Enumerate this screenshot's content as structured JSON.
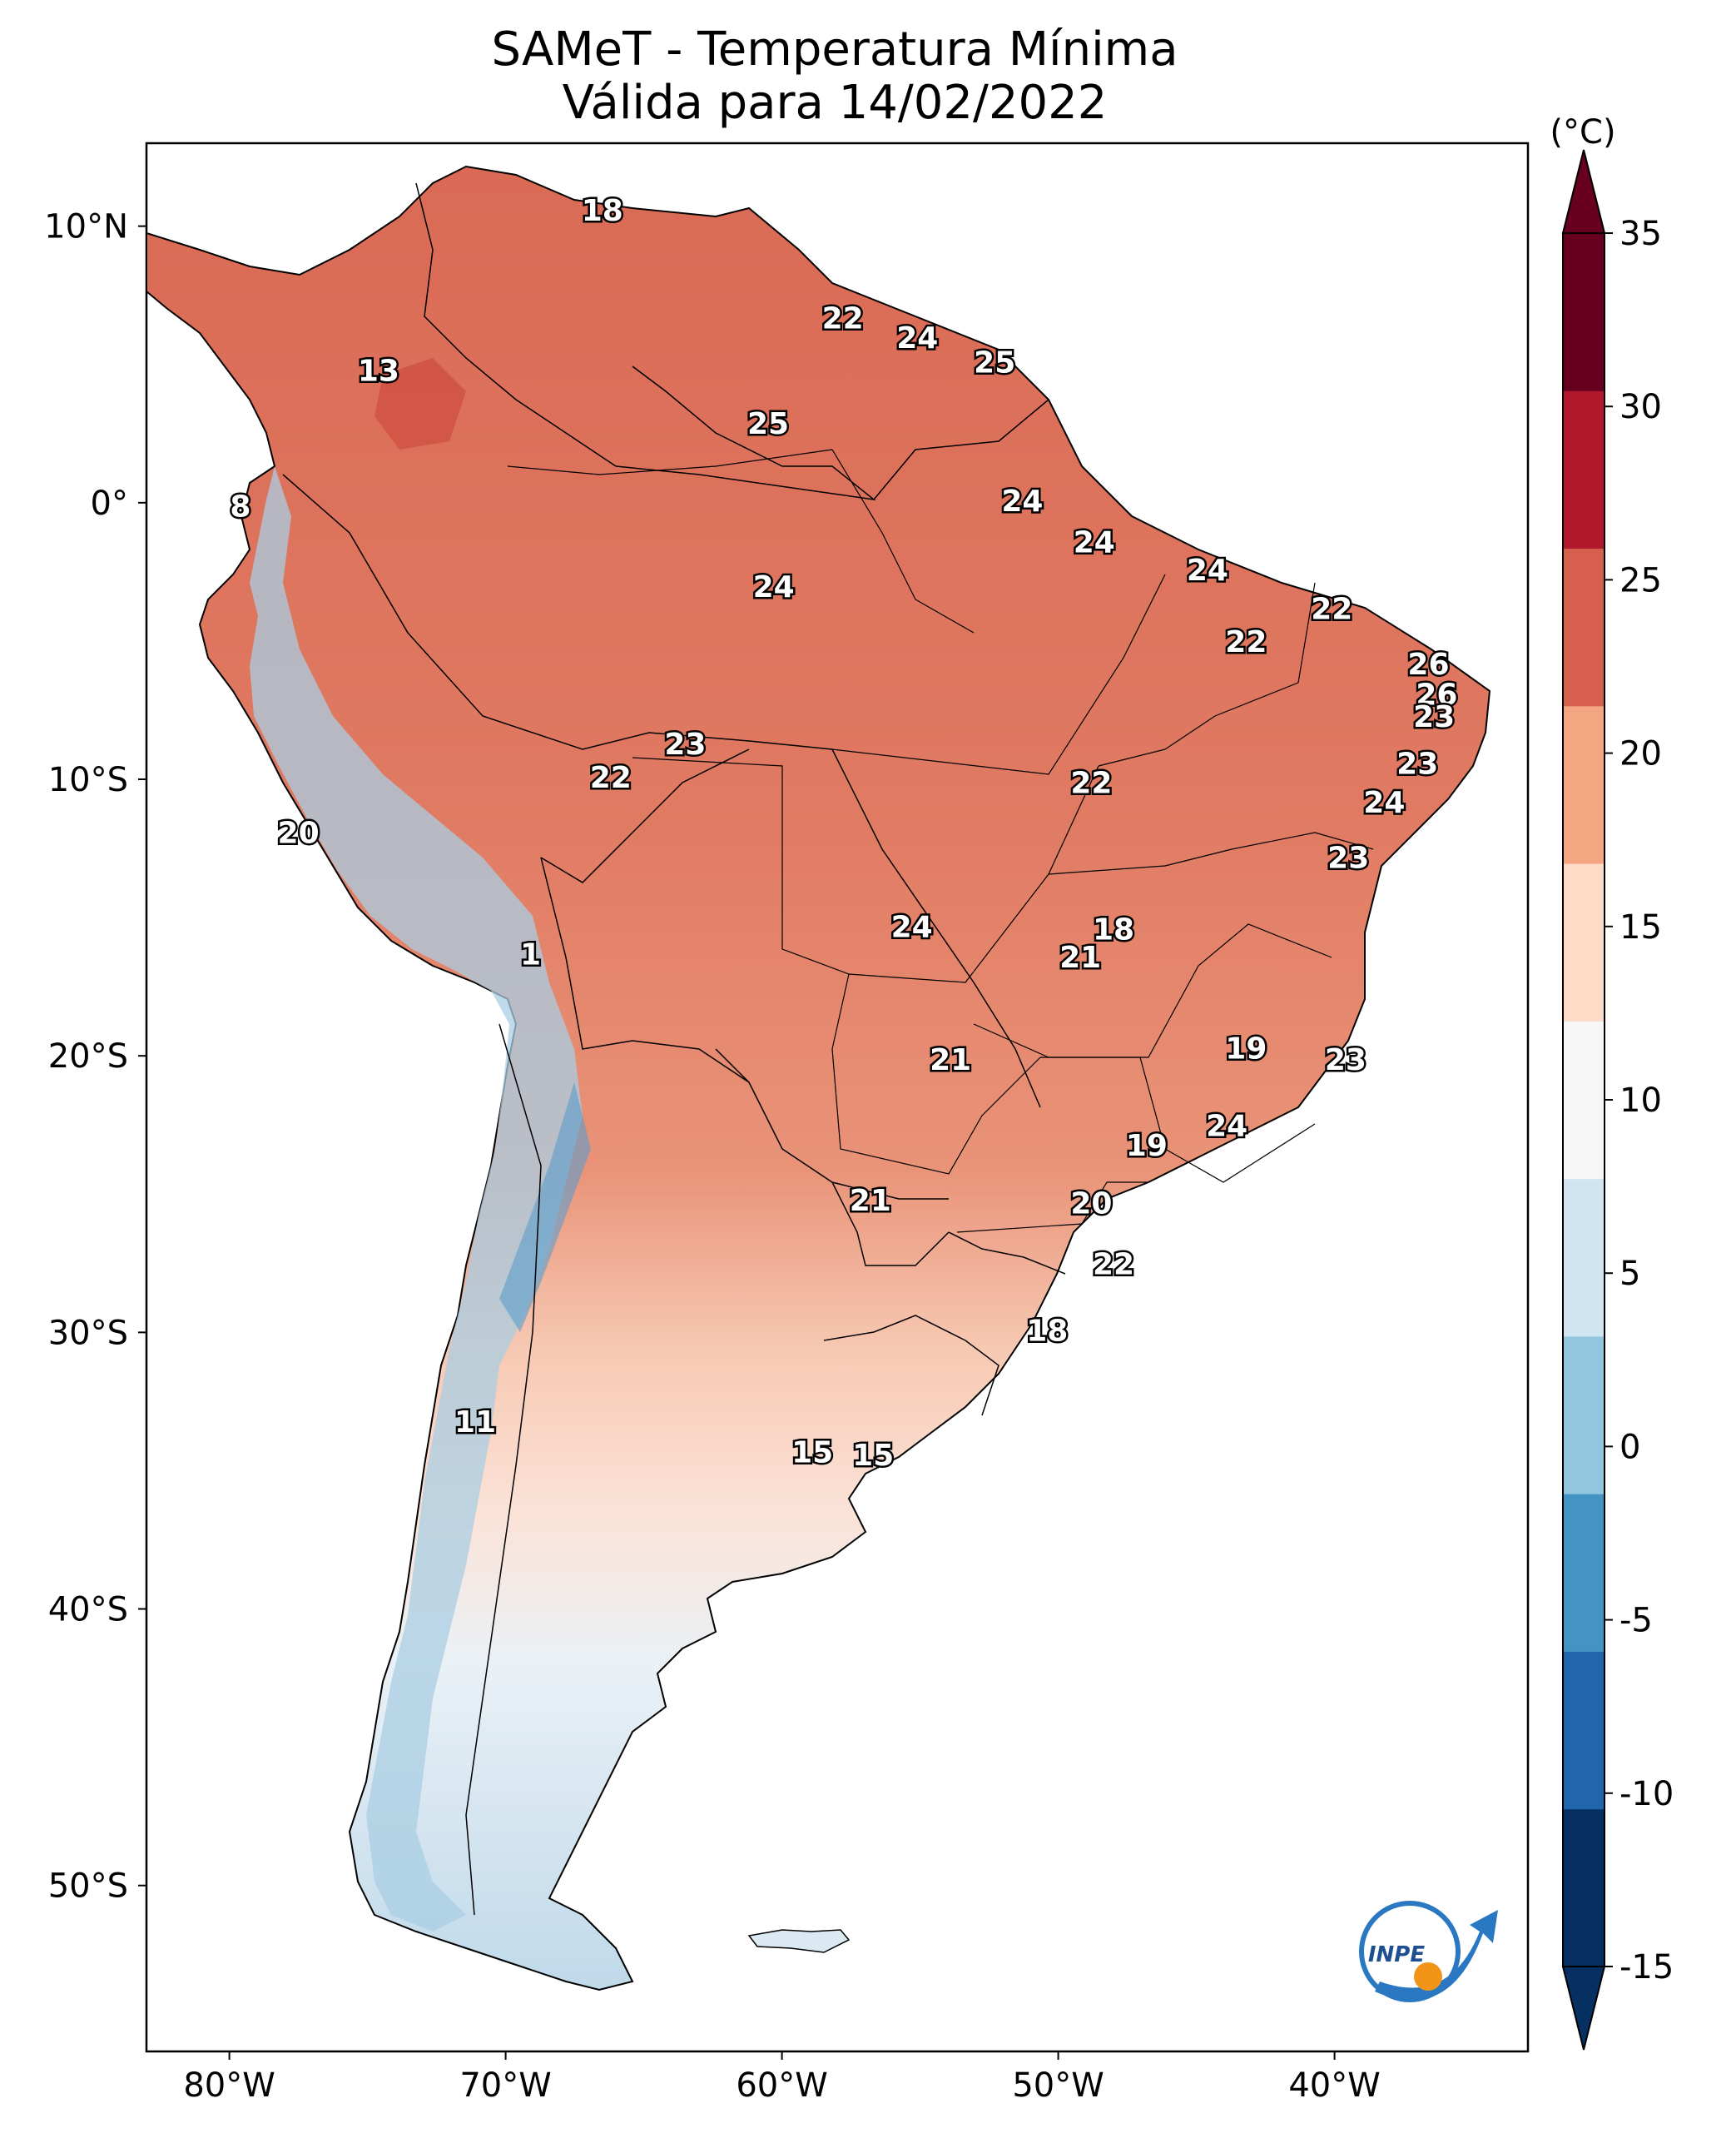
{
  "title": {
    "line1": "SAMeT - Temperatura Mínima",
    "line2": "Válida para 14/02/2022"
  },
  "colorbar": {
    "unit": "(°C)",
    "min": -15,
    "max": 35,
    "ticks": [
      "35",
      "30",
      "25",
      "20",
      "15",
      "10",
      "5",
      "0",
      "-5",
      "-10",
      "-15"
    ],
    "colors": [
      "#053061",
      "#2166ac",
      "#4393c3",
      "#92c5de",
      "#d1e5f0",
      "#f7f7f7",
      "#fddbc7",
      "#f4a582",
      "#d6604d",
      "#b2182b",
      "#67001f"
    ]
  },
  "axes": {
    "lon_labels": [
      "80°W",
      "70°W",
      "60°W",
      "50°W",
      "40°W"
    ],
    "lat_labels": [
      "10°N",
      "0°",
      "10°S",
      "20°S",
      "30°S",
      "40°S",
      "50°S"
    ],
    "lon_range": [
      -83,
      -33
    ],
    "lat_range": [
      -56,
      13
    ]
  },
  "temperature_labels": [
    {
      "text": "18",
      "lon": -66.5,
      "lat": 10.5
    },
    {
      "text": "22",
      "lon": -57.8,
      "lat": 6.6
    },
    {
      "text": "24",
      "lon": -55.1,
      "lat": 5.9
    },
    {
      "text": "25",
      "lon": -52.3,
      "lat": 5.0
    },
    {
      "text": "13",
      "lon": -74.6,
      "lat": 4.7
    },
    {
      "text": "25",
      "lon": -60.5,
      "lat": 2.8
    },
    {
      "text": "8",
      "lon": -79.6,
      "lat": -0.2
    },
    {
      "text": "24",
      "lon": -51.3,
      "lat": 0.0
    },
    {
      "text": "24",
      "lon": -48.7,
      "lat": -1.5
    },
    {
      "text": "24",
      "lon": -44.6,
      "lat": -2.5
    },
    {
      "text": "24",
      "lon": -60.3,
      "lat": -3.1
    },
    {
      "text": "22",
      "lon": -40.1,
      "lat": -3.9
    },
    {
      "text": "22",
      "lon": -43.2,
      "lat": -5.1
    },
    {
      "text": "26",
      "lon": -36.6,
      "lat": -5.9
    },
    {
      "text": "26",
      "lon": -36.3,
      "lat": -7.0
    },
    {
      "text": "23",
      "lon": -36.4,
      "lat": -7.8
    },
    {
      "text": "23",
      "lon": -63.5,
      "lat": -8.8
    },
    {
      "text": "23",
      "lon": -37.0,
      "lat": -9.5
    },
    {
      "text": "22",
      "lon": -66.2,
      "lat": -10.0
    },
    {
      "text": "22",
      "lon": -48.8,
      "lat": -10.2
    },
    {
      "text": "24",
      "lon": -38.2,
      "lat": -10.9
    },
    {
      "text": "20",
      "lon": -77.5,
      "lat": -12.0
    },
    {
      "text": "23",
      "lon": -39.5,
      "lat": -12.9
    },
    {
      "text": "24",
      "lon": -55.3,
      "lat": -15.4
    },
    {
      "text": "18",
      "lon": -48.0,
      "lat": -15.5
    },
    {
      "text": "21",
      "lon": -49.2,
      "lat": -16.5
    },
    {
      "text": "1",
      "lon": -69.1,
      "lat": -16.4
    },
    {
      "text": "19",
      "lon": -43.2,
      "lat": -19.8
    },
    {
      "text": "21",
      "lon": -53.9,
      "lat": -20.2
    },
    {
      "text": "23",
      "lon": -39.6,
      "lat": -20.2
    },
    {
      "text": "24",
      "lon": -43.9,
      "lat": -22.6
    },
    {
      "text": "19",
      "lon": -46.8,
      "lat": -23.3
    },
    {
      "text": "21",
      "lon": -56.8,
      "lat": -25.3
    },
    {
      "text": "20",
      "lon": -48.8,
      "lat": -25.4
    },
    {
      "text": "22",
      "lon": -48.0,
      "lat": -27.6
    },
    {
      "text": "18",
      "lon": -50.4,
      "lat": -30.0
    },
    {
      "text": "11",
      "lon": -71.1,
      "lat": -33.3
    },
    {
      "text": "15",
      "lon": -58.9,
      "lat": -34.4
    },
    {
      "text": "15",
      "lon": -56.7,
      "lat": -34.5
    }
  ],
  "logo": {
    "text": "INPE"
  }
}
